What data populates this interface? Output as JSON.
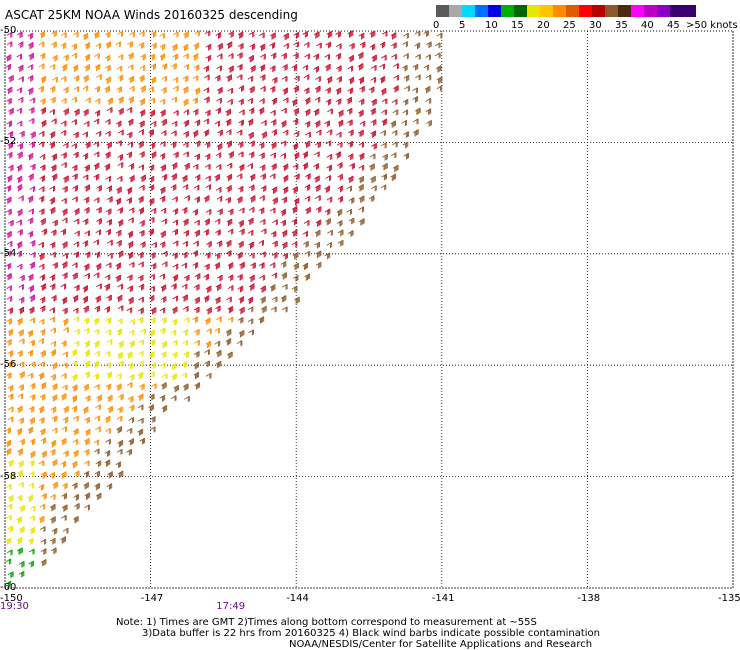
{
  "title": "ASCAT 25KM NOAA Winds 20160325 descending",
  "legend": {
    "unit_label": ">50 knots",
    "tick_labels": [
      "0",
      "5",
      "10",
      "15",
      "20",
      "25",
      "30",
      "35",
      "40",
      "45"
    ],
    "bins": [
      {
        "color": "#5a5a5a",
        "min": 0,
        "max": 2.5
      },
      {
        "color": "#a8a8a8",
        "min": 2.5,
        "max": 5
      },
      {
        "color": "#00d8ff",
        "min": 5,
        "max": 7.5
      },
      {
        "color": "#0070ff",
        "min": 7.5,
        "max": 10
      },
      {
        "color": "#0000e6",
        "min": 10,
        "max": 12.5
      },
      {
        "color": "#00b000",
        "min": 12.5,
        "max": 15
      },
      {
        "color": "#006800",
        "min": 15,
        "max": 17.5
      },
      {
        "color": "#e6e600",
        "min": 17.5,
        "max": 20
      },
      {
        "color": "#ffc400",
        "min": 20,
        "max": 22.5
      },
      {
        "color": "#ff8c00",
        "min": 22.5,
        "max": 25
      },
      {
        "color": "#e05a00",
        "min": 25,
        "max": 27.5
      },
      {
        "color": "#ff0000",
        "min": 27.5,
        "max": 30
      },
      {
        "color": "#b80000",
        "min": 30,
        "max": 32.5
      },
      {
        "color": "#8c5a2a",
        "min": 32.5,
        "max": 35
      },
      {
        "color": "#4a2a10",
        "min": 35,
        "max": 37.5
      },
      {
        "color": "#ff00ff",
        "min": 37.5,
        "max": 40
      },
      {
        "color": "#c000c0",
        "min": 40,
        "max": 42.5
      },
      {
        "color": "#8a00c8",
        "min": 42.5,
        "max": 45
      },
      {
        "color": "#3a0070",
        "min": 45,
        "max": 50
      }
    ]
  },
  "map": {
    "lon_range": [
      -150,
      -135
    ],
    "lat_range": [
      -60,
      -50
    ],
    "lat_labels": [
      "-50",
      "-52",
      "-54",
      "-56",
      "-58",
      "-60"
    ],
    "lon_labels": [
      "-150",
      "-147",
      "-144",
      "-141",
      "-138",
      "-135"
    ],
    "time_labels": [
      {
        "text": "19:30",
        "lon": -150
      },
      {
        "text": "17:49",
        "lon": -145.4
      }
    ],
    "swath_edge": [
      [
        -150,
        -60
      ],
      [
        -149.2,
        -59.6
      ],
      [
        -147.8,
        -58.2
      ],
      [
        -146.8,
        -57.0
      ],
      [
        -145.6,
        -56.1
      ],
      [
        -144.1,
        -54.9
      ],
      [
        -143.2,
        -54.0
      ],
      [
        -142.1,
        -52.9
      ],
      [
        -141.1,
        -51.4
      ],
      [
        -140.9,
        -50.0
      ]
    ],
    "wind_regions": [
      {
        "color": "#c8102e",
        "speed_kt": 30,
        "area": "central band"
      },
      {
        "color": "#8c5a2a",
        "speed_kt": 33,
        "area": "eastern swath edge"
      },
      {
        "color": "#ff8c00",
        "speed_kt": 23,
        "area": "southwest"
      },
      {
        "color": "#e6e600",
        "speed_kt": 18,
        "area": "lat -55 to -56"
      },
      {
        "color": "#d0109a",
        "speed_kt": 38,
        "area": "western edge"
      },
      {
        "color": "#00a000",
        "speed_kt": 14,
        "area": "far southwest"
      }
    ]
  },
  "notes": {
    "line1": "Note: 1) Times are GMT 2)Times along bottom correspond to measurement at ~55S",
    "line2": "3)Data buffer is 22 hrs from 20160325 4) Black wind barbs indicate possible contamination",
    "line3": "NOAA/NESDIS/Center for Satellite Applications and Research"
  }
}
